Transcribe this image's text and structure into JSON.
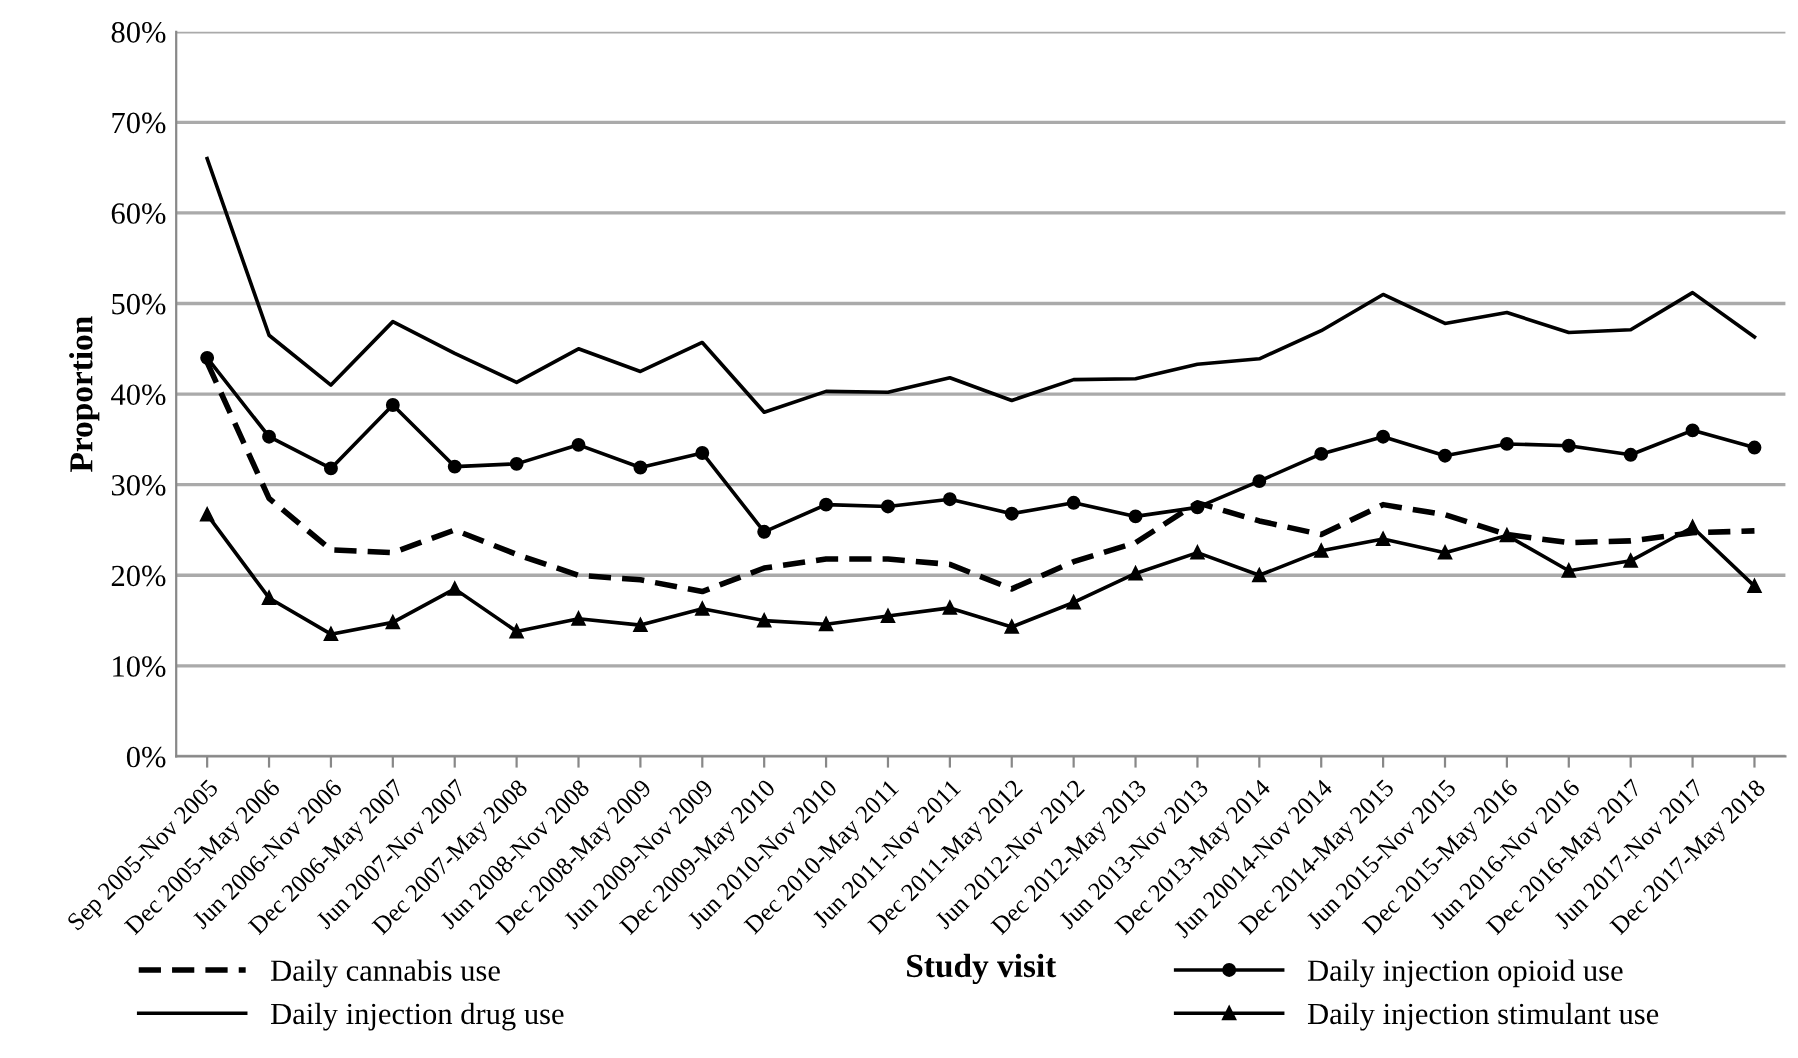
{
  "chart_data": {
    "type": "line",
    "xlabel": "Study visit",
    "ylabel": "Proportion",
    "categories": [
      "Sep 2005-Nov 2005",
      "Dec 2005-May 2006",
      "Jun 2006-Nov 2006",
      "Dec 2006-May 2007",
      "Jun 2007-Nov 2007",
      "Dec 2007-May 2008",
      "Jun 2008-Nov 2008",
      "Dec 2008-May 2009",
      "Jun 2009-Nov 2009",
      "Dec 2009-May 2010",
      "Jun 2010-Nov 2010",
      "Dec 2010-May 2011",
      "Jun 2011-Nov 2011",
      "Dec 2011-May 2012",
      "Jun 2012-Nov 2012",
      "Dec 2012-May 2013",
      "Jun 2013-Nov 2013",
      "Dec 2013-May 2014",
      "Jun 20014-Nov 2014",
      "Dec 2014-May 2015",
      "Jun 2015-Nov 2015",
      "Dec 2015-May 2016",
      "Jun 2016-Nov 2016",
      "Dec 2016-May 2017",
      "Jun 2017-Nov 2017",
      "Dec 2017-May 2018"
    ],
    "series": [
      {
        "name": "Daily cannabis use",
        "color": "#000000",
        "line_style": "dashed",
        "marker": "none",
        "values": [
          43.5,
          28.5,
          22.8,
          22.5,
          25,
          22.3,
          20,
          19.5,
          18.2,
          20.8,
          21.8,
          21.8,
          21.2,
          18.5,
          21.5,
          23.6,
          28,
          26,
          24.5,
          27.8,
          26.7,
          24.5,
          23.6,
          23.8,
          24.7,
          24.9
        ]
      },
      {
        "name": "Daily injection drug use",
        "color": "#000000",
        "line_style": "solid",
        "marker": "none",
        "values": [
          66,
          46.5,
          41,
          48,
          44.5,
          41.3,
          45,
          42.5,
          45.7,
          38,
          40.3,
          40.2,
          41.8,
          39.3,
          41.6,
          41.7,
          43.3,
          43.9,
          47,
          51,
          47.8,
          49,
          46.8,
          47.1,
          51.2,
          46.3
        ]
      },
      {
        "name": "Daily injection opioid use",
        "color": "#000000",
        "line_style": "solid",
        "marker": "circle",
        "values": [
          44,
          35.3,
          31.8,
          38.8,
          32,
          32.3,
          34.4,
          31.9,
          33.5,
          24.8,
          27.8,
          27.6,
          28.4,
          26.8,
          28,
          26.5,
          27.5,
          30.4,
          33.4,
          35.3,
          33.2,
          34.5,
          34.3,
          33.3,
          36,
          34.1
        ]
      },
      {
        "name": "Daily injection stimulant use",
        "color": "#000000",
        "line_style": "solid",
        "marker": "triangle",
        "values": [
          26.7,
          17.5,
          13.5,
          14.8,
          18.5,
          13.8,
          15.2,
          14.5,
          16.3,
          15,
          14.6,
          15.5,
          16.4,
          14.3,
          17,
          20.2,
          22.5,
          20,
          22.7,
          24,
          22.5,
          24.4,
          20.5,
          21.6,
          25.3,
          18.8
        ]
      }
    ],
    "ylim": [
      0,
      80
    ],
    "yticks": [
      {
        "value": 0,
        "label": "0%"
      },
      {
        "value": 10,
        "label": "10%"
      },
      {
        "value": 20,
        "label": "20%"
      },
      {
        "value": 30,
        "label": "30%"
      },
      {
        "value": 40,
        "label": "40%"
      },
      {
        "value": 50,
        "label": "50%"
      },
      {
        "value": 60,
        "label": "60%"
      },
      {
        "value": 70,
        "label": "70%"
      },
      {
        "value": 80,
        "label": "80%"
      }
    ],
    "grid": "y",
    "legend": "bottom"
  }
}
